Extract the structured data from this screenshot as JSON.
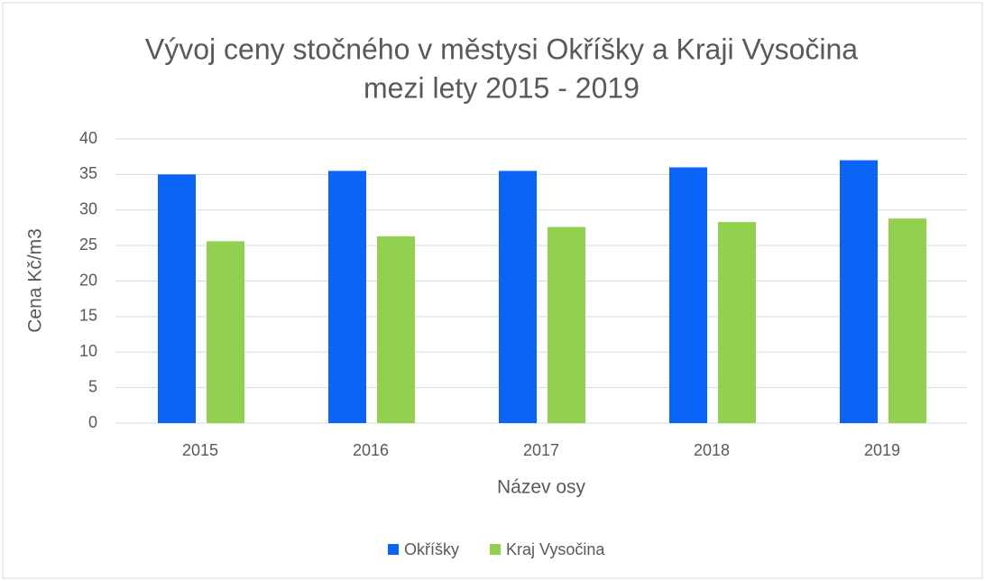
{
  "chart_data": {
    "type": "bar",
    "title": [
      "Vývoj ceny stočného v městysi Okříšky a Kraji Vysočina",
      "mezi lety 2015 - 2019"
    ],
    "x_label": "Název osy",
    "y_label": "Cena Kč/m3",
    "categories": [
      "2015",
      "2016",
      "2017",
      "2018",
      "2019"
    ],
    "series": [
      {
        "name": "Okříšky",
        "color": "#0a64f5",
        "values": [
          35,
          35.5,
          35.5,
          36,
          37
        ]
      },
      {
        "name": "Kraj Vysočina",
        "color": "#92d050",
        "values": [
          25.6,
          26.3,
          27.6,
          28.3,
          28.8
        ]
      }
    ],
    "ylim": [
      0,
      40
    ],
    "yticks": [
      0,
      5,
      10,
      15,
      20,
      25,
      30,
      35,
      40
    ],
    "grid": true,
    "legend": "bottom"
  }
}
